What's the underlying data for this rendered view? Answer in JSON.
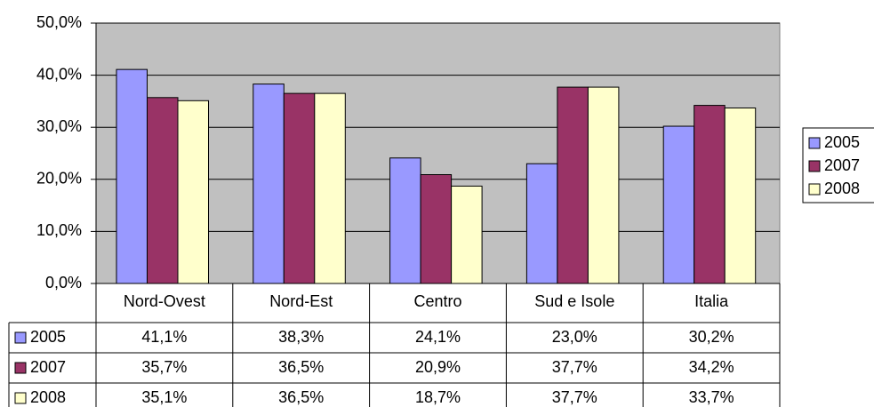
{
  "chart_data": {
    "type": "bar",
    "categories": [
      "Nord-Ovest",
      "Nord-Est",
      "Centro",
      "Sud e Isole",
      "Italia"
    ],
    "series": [
      {
        "name": "2005",
        "color": "#9999ff",
        "values": [
          41.1,
          38.3,
          24.1,
          23.0,
          30.2
        ],
        "value_labels": [
          "41,1%",
          "38,3%",
          "24,1%",
          "23,0%",
          "30,2%"
        ]
      },
      {
        "name": "2007",
        "color": "#993366",
        "values": [
          35.7,
          36.5,
          20.9,
          37.7,
          34.2
        ],
        "value_labels": [
          "35,7%",
          "36,5%",
          "20,9%",
          "37,7%",
          "34,2%"
        ]
      },
      {
        "name": "2008",
        "color": "#ffffcc",
        "values": [
          35.1,
          36.5,
          18.7,
          37.7,
          33.7
        ],
        "value_labels": [
          "35,1%",
          "36,5%",
          "18,7%",
          "37,7%",
          "33,7%"
        ]
      }
    ],
    "ylim": [
      0,
      50
    ],
    "yticks": [
      {
        "value": 0,
        "label": "0,0%"
      },
      {
        "value": 10,
        "label": "10,0%"
      },
      {
        "value": 20,
        "label": "20,0%"
      },
      {
        "value": 30,
        "label": "30,0%"
      },
      {
        "value": 40,
        "label": "40,0%"
      },
      {
        "value": 50,
        "label": "50,0%"
      }
    ],
    "grid": true,
    "legend": "right",
    "plot_background": "#c0c0c0"
  }
}
